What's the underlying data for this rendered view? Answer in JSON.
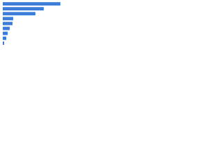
{
  "chart_data": {
    "type": "bar",
    "orientation": "horizontal",
    "categories": [
      null,
      null,
      null,
      null,
      null,
      null,
      null,
      null,
      null
    ],
    "values": [
      83,
      59,
      47,
      15,
      14,
      10,
      7,
      5,
      2
    ],
    "color": "#3b7dd8",
    "xlim": [
      0,
      85
    ]
  }
}
